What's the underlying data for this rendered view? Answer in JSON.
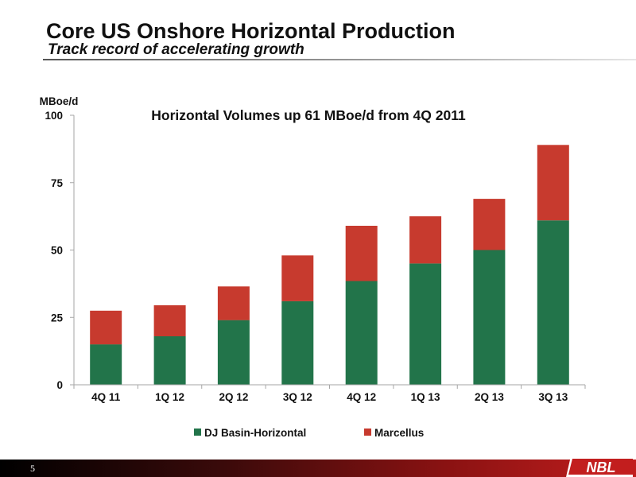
{
  "header": {
    "title": "Core US Onshore Horizontal Production",
    "subtitle": "Track record of accelerating growth"
  },
  "footer": {
    "page_number": "5",
    "logo_text": "NBL"
  },
  "colors": {
    "dj_basin": "#22744a",
    "marcellus": "#c73a2e",
    "axis": "#a6a6a6"
  },
  "chart_data": {
    "type": "bar",
    "stacked": true,
    "title": "Horizontal Volumes up 61 MBoe/d from 4Q 2011",
    "ylabel": "MBoe/d",
    "xlabel": "",
    "ylim": [
      0,
      100
    ],
    "yticks": [
      "0",
      "25",
      "50",
      "75",
      "100"
    ],
    "ytick_values": [
      0,
      25,
      50,
      75,
      100
    ],
    "grid": false,
    "legend": "bottom",
    "categories": [
      "4Q 11",
      "1Q 12",
      "2Q 12",
      "3Q 12",
      "4Q 12",
      "1Q 13",
      "2Q 13",
      "3Q 13"
    ],
    "series": [
      {
        "name": "DJ Basin-Horizontal",
        "values": [
          15,
          18,
          24,
          31,
          38.5,
          45,
          50,
          61
        ]
      },
      {
        "name": "Marcellus",
        "values": [
          12.5,
          11.5,
          12.5,
          17,
          20.5,
          17.5,
          19,
          28
        ]
      }
    ]
  }
}
